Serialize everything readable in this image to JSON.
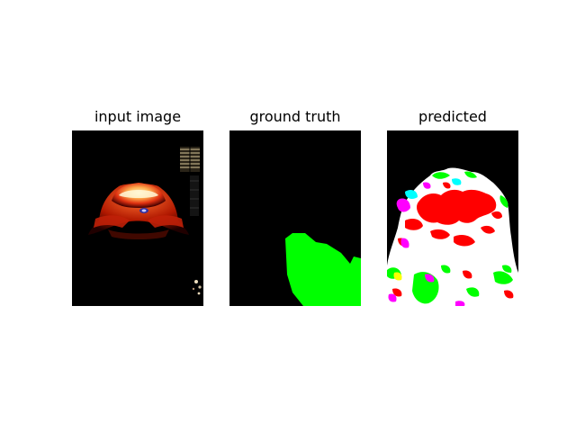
{
  "figure": {
    "panels": [
      {
        "title": "input image"
      },
      {
        "title": "ground truth"
      },
      {
        "title": "predicted"
      }
    ]
  },
  "colors": {
    "background": "#000000",
    "segment_green": "#00ff00",
    "segment_red": "#ff0000",
    "segment_white": "#ffffff",
    "segment_magenta": "#ff00ff",
    "segment_cyan": "#00ffff",
    "segment_yellow": "#ffff00"
  }
}
